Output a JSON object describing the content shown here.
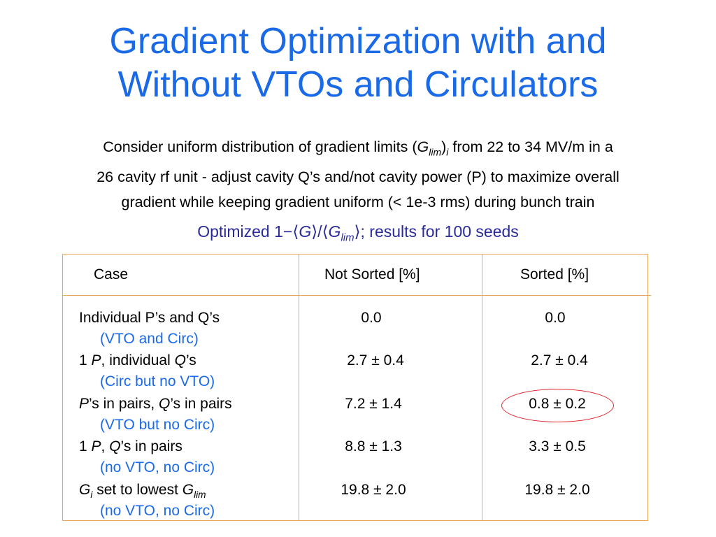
{
  "slide": {
    "title_line1": "Gradient Optimization with and",
    "title_line2": "Without VTOs and Circulators",
    "intro": {
      "p1": "Consider uniform distribution of gradient limits (",
      "G": "G",
      "lim": "lim",
      "i": "i",
      "p2": " from 22 to 34 MV/m in a",
      "line2": "26 cavity rf unit - adjust cavity Q’s and/not cavity power (P) to maximize overall",
      "line3": "gradient while keeping gradient uniform (< 1e-3 rms) during bunch train"
    },
    "subtitle": {
      "p1": "Optimized 1−⟨",
      "G": "G",
      "mid": "⟩/⟨",
      "G2": "G",
      "lim": "lim",
      "p2": "⟩; results for 100 seeds"
    }
  },
  "table": {
    "headers": {
      "case": "Case",
      "not_sorted": "Not Sorted  [%]",
      "sorted": "Sorted  [%]"
    },
    "rows": [
      {
        "case": "Individual P’s and Q’s",
        "sub": "(VTO and Circ)",
        "not_sorted": "0.0",
        "sorted": "0.0"
      },
      {
        "case_a": "1 ",
        "case_b": "P",
        "case_c": ", individual ",
        "case_d": "Q",
        "case_e": "’s",
        "sub": "(Circ but no VTO)",
        "not_sorted": "2.7 ± 0.4",
        "sorted": "2.7 ± 0.4"
      },
      {
        "case_a": "P",
        "case_b": "’s in pairs, ",
        "case_c": "Q",
        "case_d": "’s in pairs",
        "sub": "(VTO but no Circ)",
        "not_sorted": "7.2 ± 1.4",
        "sorted": "0.8 ± 0.2"
      },
      {
        "case_a": "1 ",
        "case_b": "P",
        "case_c": ", ",
        "case_d": "Q",
        "case_e": "’s in pairs",
        "sub": "(no VTO, no Circ)",
        "not_sorted": "8.8 ± 1.3",
        "sorted": "3.3 ± 0.5"
      },
      {
        "case_a": "G",
        "case_b": "i",
        "case_c": " set to lowest ",
        "case_d": "G",
        "case_e": "lim",
        "sub": "(no VTO, no Circ)",
        "not_sorted": "19.8 ± 2.0",
        "sorted": "19.8 ± 2.0"
      }
    ]
  },
  "colors": {
    "title": "#1a6ae8",
    "subtitle": "#2a2a9a",
    "table_border": "#e8a85c",
    "highlight_oval": "#e0202a"
  }
}
